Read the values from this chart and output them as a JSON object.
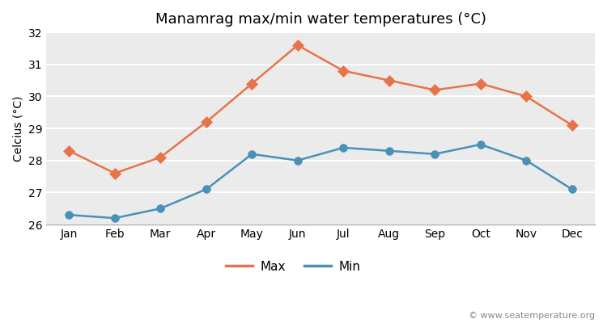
{
  "title": "Manamrag max/min water temperatures (°C)",
  "ylabel": "Celcius (°C)",
  "watermark": "© www.seatemperature.org",
  "months": [
    "Jan",
    "Feb",
    "Mar",
    "Apr",
    "May",
    "Jun",
    "Jul",
    "Aug",
    "Sep",
    "Oct",
    "Nov",
    "Dec"
  ],
  "max_values": [
    28.3,
    27.6,
    28.1,
    29.2,
    30.4,
    31.6,
    30.8,
    30.5,
    30.2,
    30.4,
    30.0,
    29.1
  ],
  "min_values": [
    26.3,
    26.2,
    26.5,
    27.1,
    28.2,
    28.0,
    28.4,
    28.3,
    28.2,
    28.5,
    28.0,
    27.1
  ],
  "max_color": "#E8734A",
  "min_color": "#4A90B8",
  "background_color": "#EBEBEB",
  "plot_bg_color": "#FFFFFF",
  "ylim": [
    26.0,
    32.0
  ],
  "yticks": [
    26,
    27,
    28,
    29,
    30,
    31,
    32
  ],
  "grid_color": "#FFFFFF",
  "title_fontsize": 13,
  "label_fontsize": 10,
  "tick_fontsize": 10,
  "watermark_fontsize": 8,
  "legend_labels": [
    "Max",
    "Min"
  ],
  "linewidth": 1.8,
  "markersize_diamond": 7,
  "markersize_circle": 7
}
